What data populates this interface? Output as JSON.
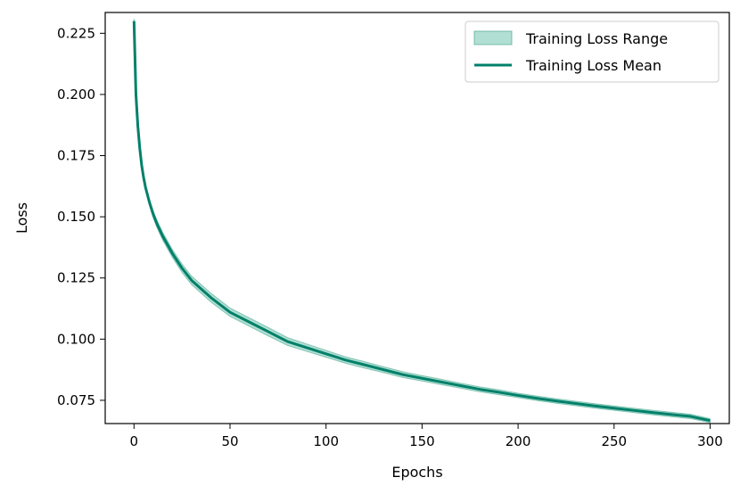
{
  "chart_data": {
    "type": "line",
    "title": "",
    "xlabel": "Epochs",
    "ylabel": "Loss",
    "xlim": [
      -15,
      310
    ],
    "ylim": [
      0.0655,
      0.2335
    ],
    "xticks": [
      0,
      50,
      100,
      150,
      200,
      250,
      300
    ],
    "yticks": [
      0.075,
      0.1,
      0.125,
      0.15,
      0.175,
      0.2,
      0.225
    ],
    "xtick_labels": [
      "0",
      "50",
      "100",
      "150",
      "200",
      "250",
      "300"
    ],
    "ytick_labels": [
      "0.075",
      "0.100",
      "0.125",
      "0.150",
      "0.175",
      "0.200",
      "0.225"
    ],
    "grid": false,
    "legend_position": "top-right",
    "colors": {
      "mean_line": "#00806a",
      "range_fill": "#66bfa8",
      "range_edge": "#4aa88f"
    },
    "series": [
      {
        "name": "Training Loss Mean",
        "kind": "line",
        "x": [
          0,
          1,
          2,
          3,
          4,
          5,
          6,
          8,
          10,
          12,
          15,
          20,
          25,
          30,
          40,
          50,
          60,
          70,
          80,
          90,
          100,
          110,
          120,
          130,
          140,
          150,
          160,
          170,
          180,
          190,
          200,
          210,
          220,
          230,
          240,
          250,
          260,
          270,
          280,
          290,
          300
        ],
        "y": [
          0.23,
          0.2,
          0.187,
          0.178,
          0.171,
          0.166,
          0.162,
          0.156,
          0.151,
          0.147,
          0.142,
          0.135,
          0.129,
          0.124,
          0.117,
          0.111,
          0.107,
          0.103,
          0.099,
          0.0965,
          0.094,
          0.0915,
          0.0895,
          0.0875,
          0.0855,
          0.084,
          0.0825,
          0.081,
          0.0795,
          0.0783,
          0.077,
          0.0758,
          0.0747,
          0.0737,
          0.0727,
          0.0718,
          0.0709,
          0.07,
          0.0692,
          0.0684,
          0.0667
        ]
      },
      {
        "name": "Training Loss Range",
        "kind": "band",
        "x": [
          0,
          1,
          2,
          3,
          4,
          5,
          6,
          8,
          10,
          12,
          15,
          20,
          25,
          30,
          40,
          50,
          60,
          70,
          80,
          90,
          100,
          110,
          120,
          130,
          140,
          150,
          160,
          170,
          180,
          190,
          200,
          210,
          220,
          230,
          240,
          250,
          260,
          270,
          280,
          290,
          300
        ],
        "low": [
          0.229,
          0.199,
          0.186,
          0.177,
          0.1702,
          0.1652,
          0.1612,
          0.1548,
          0.1496,
          0.1455,
          0.1404,
          0.1334,
          0.1273,
          0.1223,
          0.1152,
          0.1093,
          0.1053,
          0.1013,
          0.0974,
          0.095,
          0.0926,
          0.0902,
          0.0882,
          0.0863,
          0.0843,
          0.0829,
          0.0814,
          0.08,
          0.0785,
          0.0773,
          0.0761,
          0.0749,
          0.0738,
          0.0728,
          0.0718,
          0.0709,
          0.07,
          0.0691,
          0.0683,
          0.0675,
          0.0659
        ],
        "high": [
          0.231,
          0.201,
          0.188,
          0.179,
          0.1718,
          0.1668,
          0.1628,
          0.1572,
          0.1524,
          0.1485,
          0.1436,
          0.1366,
          0.1307,
          0.1257,
          0.1188,
          0.1127,
          0.1087,
          0.1047,
          0.1006,
          0.098,
          0.0954,
          0.0928,
          0.0908,
          0.0887,
          0.0867,
          0.0851,
          0.0836,
          0.082,
          0.0805,
          0.0793,
          0.0779,
          0.0767,
          0.0756,
          0.0746,
          0.0736,
          0.0727,
          0.0718,
          0.0709,
          0.0701,
          0.0693,
          0.0675
        ]
      }
    ]
  }
}
